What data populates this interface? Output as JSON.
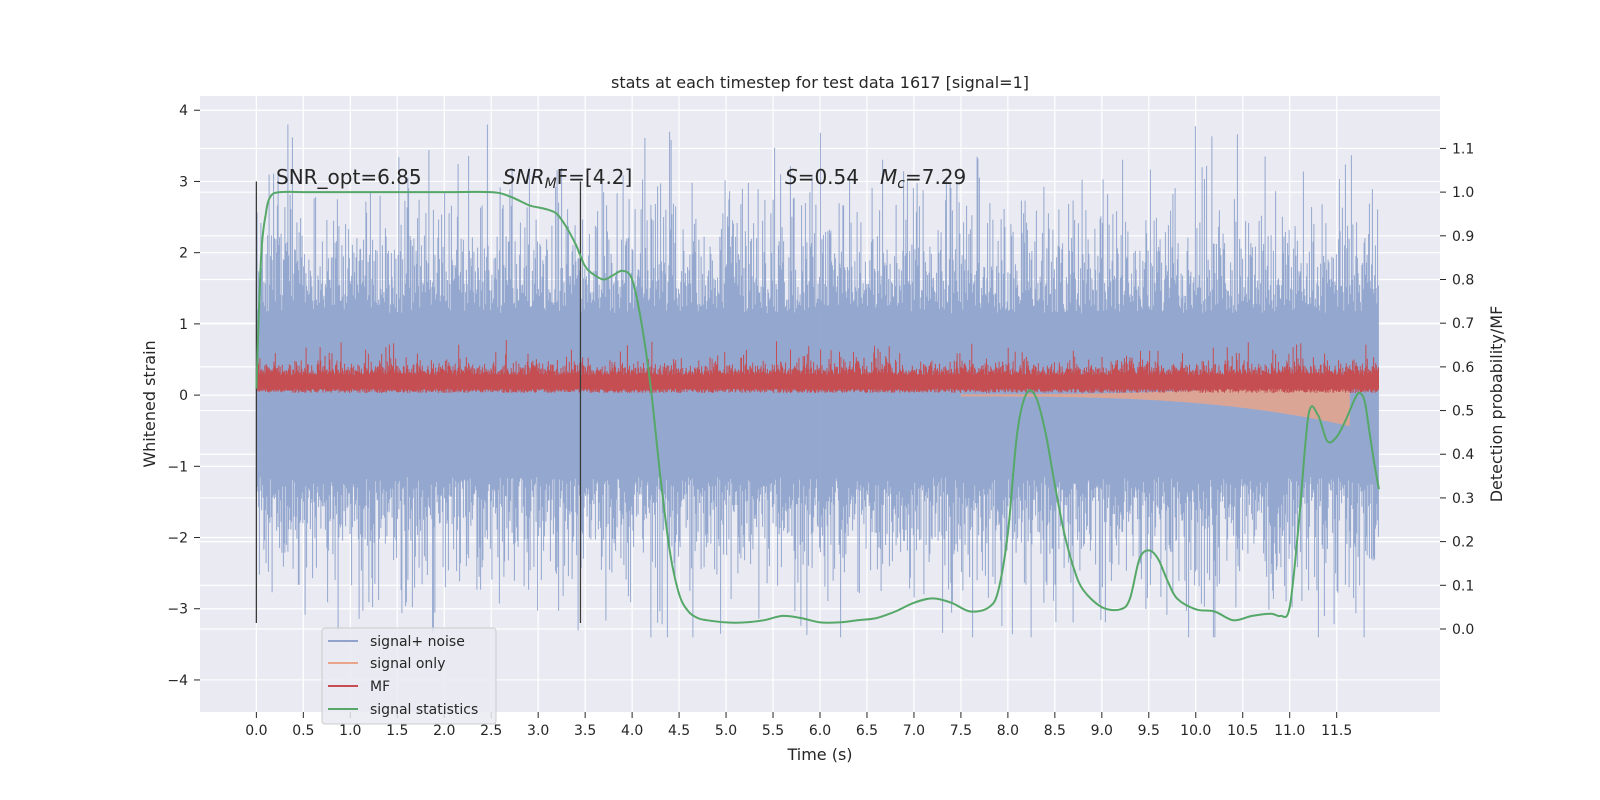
{
  "chart_data": {
    "type": "line",
    "title": "stats at each timestep for test data 1617 [signal=1]",
    "xlabel": "Time (s)",
    "ylabel_left": "Whitened strain",
    "ylabel_right": "Detection probability/MF",
    "xlim": [
      -0.6,
      12.6
    ],
    "ylim_left": [
      -4.45,
      4.2
    ],
    "ylim_right": [
      -0.19,
      1.22
    ],
    "xticks": [
      "0.0",
      "0.5",
      "1.0",
      "1.5",
      "2.0",
      "2.5",
      "3.0",
      "3.5",
      "4.0",
      "4.5",
      "5.0",
      "5.5",
      "6.0",
      "6.5",
      "7.0",
      "7.5",
      "8.0",
      "8.5",
      "9.0",
      "9.5",
      "10.0",
      "10.5",
      "11.0",
      "11.5"
    ],
    "yticks_left": [
      "4",
      "3",
      "2",
      "1",
      "0",
      "−1",
      "−2",
      "−3",
      "−4"
    ],
    "yticks_right": [
      "1.1",
      "1.0",
      "0.9",
      "0.8",
      "0.7",
      "0.6",
      "0.5",
      "0.4",
      "0.3",
      "0.2",
      "0.1",
      "0.0"
    ],
    "grid": true,
    "legend_position": "lower-left",
    "annotations": {
      "snr_opt": "SNR_opt=6.85",
      "snr_mf_main": "SNR",
      "snr_mf_sub": "M",
      "snr_mf_rest": "F=[4.2]",
      "s_main": "S",
      "s_rest": "=0.54",
      "mc_main": "M",
      "mc_sub": "c",
      "mc_rest": "=7.29"
    },
    "vlines": [
      0.0,
      3.45
    ],
    "series": [
      {
        "name": "signal+ noise",
        "color": "#8fa3cc",
        "axis": "left",
        "style": "noise",
        "x_range": [
          0.0,
          11.95
        ],
        "envelope": [
          -3.4,
          3.8
        ]
      },
      {
        "name": "signal only",
        "color": "#e8a58c",
        "axis": "left",
        "style": "chirp",
        "x_range": [
          7.5,
          11.65
        ]
      },
      {
        "name": "MF",
        "color": "#c44e52",
        "axis": "left",
        "style": "band",
        "x_range": [
          0.0,
          11.95
        ],
        "envelope": [
          0.0,
          1.0
        ]
      },
      {
        "name": "signal statistics",
        "color": "#55a868",
        "axis": "right",
        "x": [
          0.0,
          0.05,
          0.1,
          0.15,
          0.25,
          0.5,
          1.0,
          1.5,
          2.0,
          2.5,
          2.7,
          2.9,
          3.0,
          3.1,
          3.2,
          3.3,
          3.4,
          3.5,
          3.6,
          3.7,
          3.8,
          3.9,
          4.0,
          4.1,
          4.2,
          4.3,
          4.4,
          4.5,
          4.6,
          4.7,
          4.8,
          5.0,
          5.2,
          5.4,
          5.6,
          5.8,
          6.0,
          6.2,
          6.4,
          6.6,
          6.8,
          7.0,
          7.2,
          7.4,
          7.6,
          7.8,
          7.9,
          8.0,
          8.1,
          8.2,
          8.3,
          8.4,
          8.5,
          8.6,
          8.7,
          8.8,
          9.0,
          9.2,
          9.3,
          9.4,
          9.5,
          9.6,
          9.7,
          9.8,
          10.0,
          10.2,
          10.4,
          10.6,
          10.8,
          10.9,
          11.0,
          11.1,
          11.2,
          11.3,
          11.4,
          11.5,
          11.6,
          11.7,
          11.75,
          11.8,
          11.85,
          11.9,
          11.95
        ],
        "values": [
          0.55,
          0.85,
          0.95,
          0.99,
          1.0,
          1.0,
          1.0,
          1.0,
          1.0,
          1.0,
          0.99,
          0.97,
          0.965,
          0.96,
          0.95,
          0.92,
          0.88,
          0.83,
          0.81,
          0.8,
          0.81,
          0.82,
          0.8,
          0.7,
          0.55,
          0.35,
          0.18,
          0.08,
          0.04,
          0.025,
          0.02,
          0.015,
          0.015,
          0.02,
          0.03,
          0.025,
          0.015,
          0.015,
          0.02,
          0.025,
          0.04,
          0.06,
          0.07,
          0.06,
          0.04,
          0.05,
          0.09,
          0.22,
          0.45,
          0.54,
          0.53,
          0.45,
          0.33,
          0.22,
          0.14,
          0.09,
          0.05,
          0.045,
          0.07,
          0.16,
          0.18,
          0.16,
          0.11,
          0.07,
          0.045,
          0.04,
          0.02,
          0.03,
          0.035,
          0.03,
          0.05,
          0.25,
          0.49,
          0.49,
          0.43,
          0.44,
          0.48,
          0.53,
          0.54,
          0.52,
          0.45,
          0.38,
          0.32
        ]
      }
    ]
  }
}
